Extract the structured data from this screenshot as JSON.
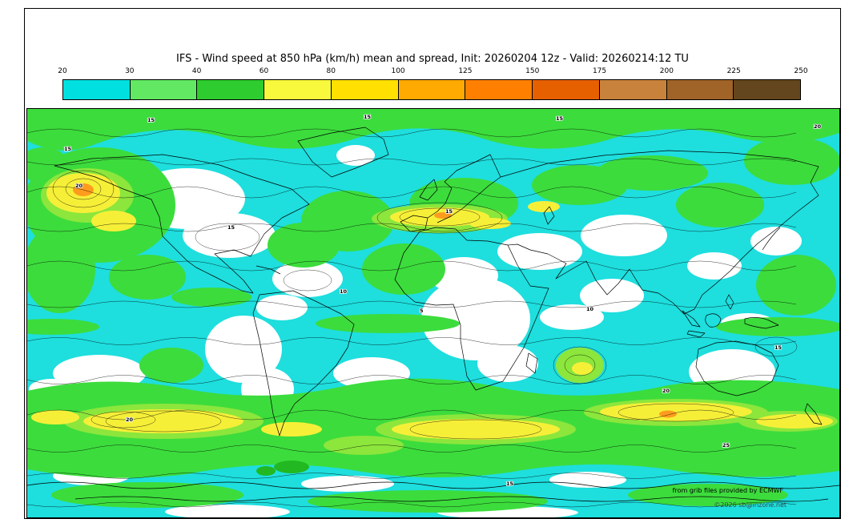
{
  "title": "IFS - Wind speed at 850 hPa (km/h) mean and spread, Init: 20260204 12z - Valid: 20260214:12 TU",
  "colorbar": {
    "tick_labels": [
      "20",
      "30",
      "40",
      "60",
      "80",
      "100",
      "125",
      "150",
      "175",
      "200",
      "225",
      "250"
    ],
    "segment_colors": [
      "#00e0e0",
      "#62e862",
      "#2ecc2e",
      "#f8f83c",
      "#ffe000",
      "#ffaa00",
      "#ff8000",
      "#e66000",
      "#c8823c",
      "#a06428",
      "#64461e"
    ]
  },
  "palette": {
    "base": "#1edede",
    "green": "#3cdc3c",
    "green2": "#8ce63c",
    "green_dark": "#22b822",
    "yellow": "#f6ef38",
    "orange": "#ff9c1e",
    "land": "#ffffff"
  },
  "map": {
    "contour_labels": [
      "15",
      "15",
      "15",
      "20",
      "15",
      "20",
      "15",
      "10",
      "5",
      "15",
      "10",
      "20",
      "15",
      "20",
      "15",
      "25"
    ],
    "credit_ecmwf": "from grib files provided by ECMWF",
    "credit_copyright": "©2026 sb@irizone.net"
  }
}
